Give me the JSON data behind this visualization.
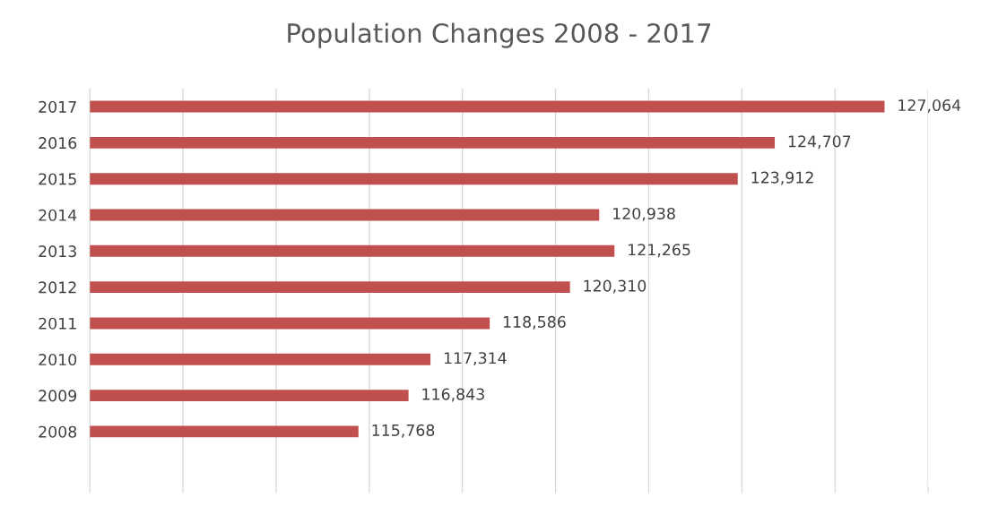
{
  "chart_data": {
    "type": "bar",
    "orientation": "horizontal",
    "title": "Population Changes 2008 - 2017",
    "categories": [
      "2017",
      "2016",
      "2015",
      "2014",
      "2013",
      "2012",
      "2011",
      "2010",
      "2009",
      "2008",
      null
    ],
    "values": [
      127064,
      124707,
      123912,
      120938,
      121265,
      120310,
      118586,
      117314,
      116843,
      115768,
      null
    ],
    "value_labels": [
      "127,064",
      "124,707",
      "123,912",
      "120,938",
      "121,265",
      "120,310",
      "118,586",
      "117,314",
      "116,843",
      "115,768",
      null
    ],
    "color": "#c0504d",
    "xlim": [
      110000,
      128000
    ],
    "xticks": [
      {
        "value": 110000,
        "label": null
      },
      {
        "value": 112000,
        "label": null
      },
      {
        "value": 114000,
        "label": null
      },
      {
        "value": 116000,
        "label": null
      },
      {
        "value": 118000,
        "label": null
      },
      {
        "value": 120000,
        "label": null
      },
      {
        "value": 122000,
        "label": null
      },
      {
        "value": 124000,
        "label": null
      },
      {
        "value": 126000,
        "label": null
      },
      {
        "value": 128000,
        "label": null
      }
    ],
    "tick_labels": "y",
    "grid": "x",
    "legend": false
  }
}
